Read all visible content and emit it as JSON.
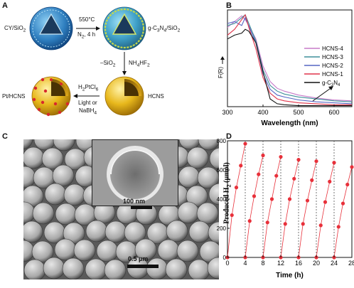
{
  "panels": {
    "A": {
      "letter": "A",
      "cy_sio2": "CY/SiO",
      "cy_sio2_sub": "2",
      "temp": "550°C",
      "n2_prefix": "N",
      "n2_sub": "2",
      "n2_suffix": ", 4 h",
      "gcn_sio2_prefix": "g-C",
      "gcn_sio2_sub1": "3",
      "gcn_sio2_mid": "N",
      "gcn_sio2_sub2": "4",
      "gcn_sio2_suffix": "/SiO",
      "gcn_sio2_sub3": "2",
      "minus_sio2_prefix": "–SiO",
      "minus_sio2_sub": "2",
      "nh4hf2_prefix": "NH",
      "nh4hf2_sub1": "4",
      "nh4hf2_mid": "HF",
      "nh4hf2_sub2": "2",
      "hcns": "HCNS",
      "pt_hcns": "Pt/HCNS",
      "h2ptcl6_prefix": "H",
      "h2ptcl6_sub1": "2",
      "h2ptcl6_mid": "PtCl",
      "h2ptcl6_sub2": "6",
      "light_or": "Light or",
      "nabh4_prefix": "NaBH",
      "nabh4_sub": "4"
    },
    "B": {
      "letter": "B",
      "ylabel": "F(R)",
      "xlabel": "Wavelength (nm)",
      "legend": [
        "HCNS-4",
        "HCNS-3",
        "HCNS-2",
        "HCNS-1",
        "g-C"
      ],
      "legend_last_sub1": "3",
      "legend_last_mid": "N",
      "legend_last_sub2": "4"
    },
    "C": {
      "letter": "C",
      "inset_scale": "100 nm",
      "main_scale": "0.5 µm"
    },
    "D": {
      "letter": "D",
      "ylabel_prefix": "Produced H",
      "ylabel_sub": "2",
      "ylabel_suffix": " (µmol)",
      "xlabel": "Time (h)"
    }
  },
  "colors": {
    "hcns4": "#c77ac9",
    "hcns3": "#3f8f9a",
    "hcns2": "#5566c4",
    "hcns1": "#e0344a",
    "gc3n4": "#111111",
    "h2_series": "#e8303a",
    "shell_yellow": "#e8b81c",
    "pt_dot": "#d8282c",
    "sphere_blue": "#2f7fc0"
  },
  "chart_data": [
    {
      "panel": "B",
      "type": "line",
      "xlabel": "Wavelength (nm)",
      "ylabel": "F(R)",
      "xlim": [
        300,
        650
      ],
      "xticks": [
        300,
        400,
        500,
        600
      ],
      "legend_position": "right",
      "series": [
        {
          "name": "HCNS-4",
          "x": [
            300,
            320,
            340,
            350,
            360,
            380,
            400,
            420,
            440,
            460,
            500,
            550,
            600,
            650
          ],
          "y": [
            0.82,
            0.88,
            0.94,
            0.9,
            0.84,
            0.7,
            0.42,
            0.26,
            0.19,
            0.16,
            0.12,
            0.09,
            0.07,
            0.06
          ]
        },
        {
          "name": "HCNS-3",
          "x": [
            300,
            320,
            340,
            350,
            360,
            380,
            400,
            420,
            440,
            460,
            500,
            550,
            600,
            650
          ],
          "y": [
            0.84,
            0.86,
            0.92,
            0.95,
            0.86,
            0.68,
            0.38,
            0.22,
            0.16,
            0.13,
            0.1,
            0.08,
            0.06,
            0.05
          ]
        },
        {
          "name": "HCNS-2",
          "x": [
            300,
            320,
            340,
            350,
            360,
            380,
            400,
            420,
            440,
            460,
            500,
            550,
            600,
            650
          ],
          "y": [
            0.86,
            0.88,
            0.84,
            0.92,
            0.83,
            0.66,
            0.34,
            0.18,
            0.12,
            0.1,
            0.07,
            0.05,
            0.04,
            0.03
          ]
        },
        {
          "name": "HCNS-1",
          "x": [
            300,
            320,
            340,
            350,
            360,
            380,
            400,
            420,
            440,
            460,
            500,
            550,
            600,
            650
          ],
          "y": [
            0.74,
            0.8,
            0.9,
            0.95,
            0.82,
            0.6,
            0.3,
            0.14,
            0.08,
            0.06,
            0.04,
            0.03,
            0.02,
            0.02
          ]
        },
        {
          "name": "g-C3N4",
          "x": [
            300,
            320,
            340,
            350,
            360,
            380,
            400,
            420,
            440,
            460,
            500,
            550,
            600,
            650
          ],
          "y": [
            0.7,
            0.74,
            0.76,
            0.8,
            0.78,
            0.66,
            0.36,
            0.08,
            0.03,
            0.02,
            0.01,
            0.01,
            0.01,
            0.01
          ]
        }
      ]
    },
    {
      "panel": "D",
      "type": "scatter",
      "xlabel": "Time (h)",
      "ylabel": "Produced H2 (µmol)",
      "xlim": [
        0,
        28
      ],
      "ylim": [
        0,
        800
      ],
      "xticks": [
        0,
        4,
        8,
        12,
        16,
        20,
        24,
        28
      ],
      "yticks": [
        0,
        200,
        400,
        600,
        800
      ],
      "cycles": [
        {
          "t": [
            0,
            1,
            2,
            3,
            4
          ],
          "y": [
            0,
            290,
            480,
            630,
            780
          ]
        },
        {
          "t": [
            4,
            5,
            6,
            7,
            8
          ],
          "y": [
            0,
            250,
            420,
            570,
            700
          ]
        },
        {
          "t": [
            8,
            9,
            10,
            11,
            12
          ],
          "y": [
            0,
            240,
            400,
            560,
            690
          ]
        },
        {
          "t": [
            12,
            13,
            14,
            15,
            16
          ],
          "y": [
            0,
            230,
            400,
            540,
            670
          ]
        },
        {
          "t": [
            16,
            17,
            18,
            19,
            20
          ],
          "y": [
            0,
            230,
            390,
            530,
            660
          ]
        },
        {
          "t": [
            20,
            21,
            22,
            23,
            24
          ],
          "y": [
            0,
            220,
            380,
            520,
            650
          ]
        },
        {
          "t": [
            24,
            25,
            26,
            27,
            28
          ],
          "y": [
            0,
            210,
            370,
            500,
            620
          ]
        }
      ]
    }
  ]
}
